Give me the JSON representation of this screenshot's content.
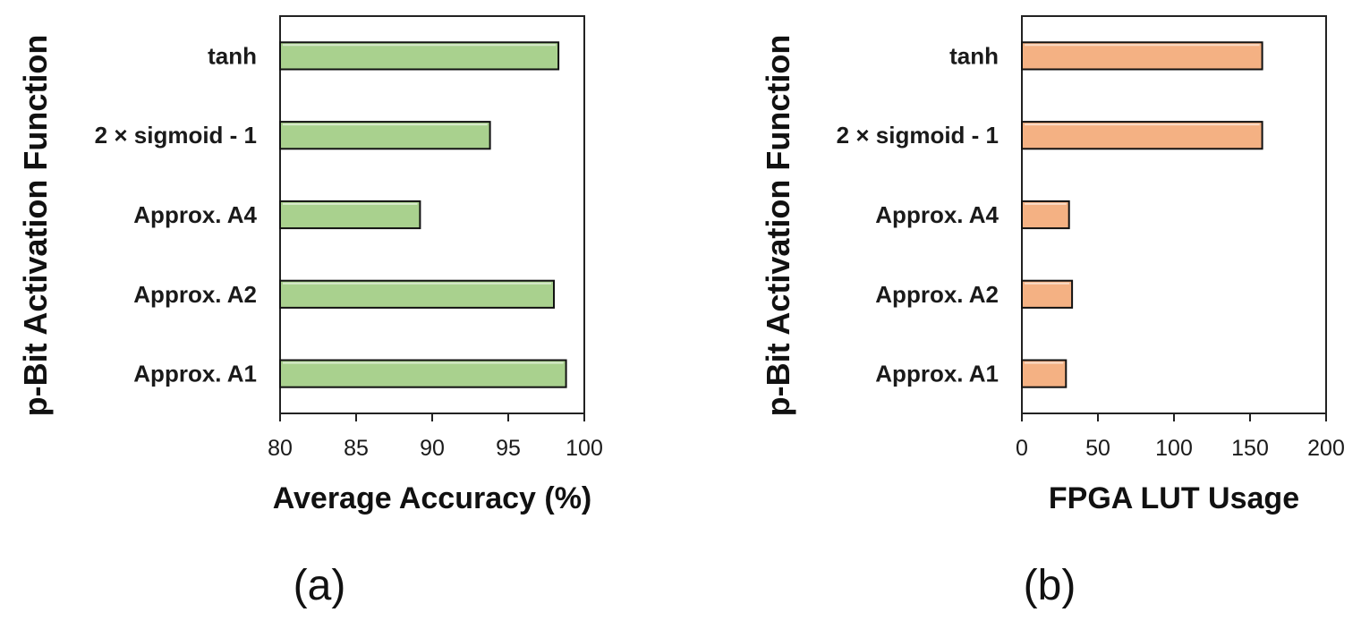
{
  "chart_data": [
    {
      "type": "bar",
      "orientation": "horizontal",
      "panel_label": "(a)",
      "categories": [
        "tanh",
        "2 × sigmoid - 1",
        "Approx. A4",
        "Approx. A2",
        "Approx. A1"
      ],
      "values": [
        98.3,
        93.8,
        89.2,
        98.0,
        98.8
      ],
      "xlabel": "Average Accuracy (%)",
      "ylabel": "p-Bit Activation Function",
      "xlim": [
        80,
        100
      ],
      "xticks": [
        80,
        85,
        90,
        95,
        100
      ],
      "bar_color": "#a9d18e",
      "grid": false
    },
    {
      "type": "bar",
      "orientation": "horizontal",
      "panel_label": "(b)",
      "categories": [
        "tanh",
        "2 × sigmoid - 1",
        "Approx. A4",
        "Approx. A2",
        "Approx. A1"
      ],
      "values": [
        158,
        158,
        31,
        33,
        29
      ],
      "xlabel": "FPGA LUT Usage",
      "ylabel": "p-Bit Activation Function",
      "xlim": [
        0,
        200
      ],
      "xticks": [
        0,
        50,
        100,
        150,
        200
      ],
      "bar_color": "#f4b183",
      "grid": false
    }
  ]
}
